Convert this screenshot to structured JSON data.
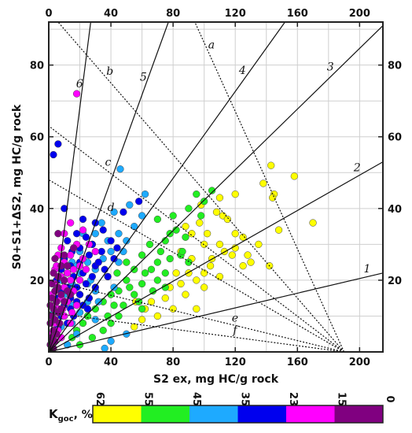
{
  "chart_data": {
    "type": "scatter",
    "xlabel": "S2 ex, mg HC/g rock",
    "ylabel": "S0+S1+ΔS2, mg HC/g rock",
    "xlim": [
      0,
      215
    ],
    "ylim": [
      0,
      92
    ],
    "x_ticks": [
      0,
      40,
      80,
      120,
      160,
      200
    ],
    "y_ticks": [
      20,
      40,
      60,
      80
    ],
    "grid": true,
    "axes_on_all_sides": true,
    "solid_lines": [
      {
        "label": "1",
        "from": [
          0,
          0
        ],
        "to": [
          215,
          22
        ]
      },
      {
        "label": "2",
        "from": [
          0,
          0
        ],
        "to": [
          215,
          53
        ]
      },
      {
        "label": "3",
        "from": [
          0,
          0
        ],
        "to": [
          215,
          91
        ]
      },
      {
        "label": "4",
        "from": [
          0,
          0
        ],
        "to": [
          152,
          92
        ]
      },
      {
        "label": "5",
        "from": [
          0,
          0
        ],
        "to": [
          77,
          92
        ]
      },
      {
        "label": "6",
        "from": [
          0,
          0
        ],
        "to": [
          27,
          92
        ]
      }
    ],
    "dotted_lines": [
      {
        "label": "a",
        "from": [
          190,
          0
        ],
        "to": [
          94,
          92
        ]
      },
      {
        "label": "b",
        "from": [
          190,
          0
        ],
        "to": [
          0,
          95
        ]
      },
      {
        "label": "c",
        "from": [
          190,
          0
        ],
        "to": [
          0,
          63
        ]
      },
      {
        "label": "d",
        "from": [
          190,
          0
        ],
        "to": [
          0,
          48
        ]
      },
      {
        "label": "e",
        "from": [
          190,
          0
        ],
        "to": [
          0,
          20
        ]
      },
      {
        "label": "f",
        "from": [
          190,
          0
        ],
        "to": [
          0,
          11
        ]
      }
    ],
    "colorbar": {
      "label_main": "K",
      "label_sub": "goc",
      "label_unit": ", %",
      "ticks": [
        "62",
        "55",
        "45",
        "35",
        "23",
        "15",
        "0"
      ],
      "segments": [
        {
          "range": "62–55",
          "color": "#ffff00"
        },
        {
          "range": "55–45",
          "color": "#22ee22"
        },
        {
          "range": "45–35",
          "color": "#1eaaff"
        },
        {
          "range": "35–23",
          "color": "#0000ee"
        },
        {
          "range": "23–15",
          "color": "#ff00ff"
        },
        {
          "range": "15–0",
          "color": "#800080"
        }
      ]
    },
    "series": [
      {
        "color": "#ffff00",
        "points": [
          [
            143,
            52
          ],
          [
            158,
            49
          ],
          [
            138,
            47
          ],
          [
            145,
            44
          ],
          [
            144,
            43
          ],
          [
            120,
            44
          ],
          [
            110,
            43
          ],
          [
            98,
            41
          ],
          [
            108,
            39
          ],
          [
            112,
            38
          ],
          [
            97,
            36
          ],
          [
            115,
            37
          ],
          [
            170,
            36
          ],
          [
            148,
            34
          ],
          [
            92,
            33
          ],
          [
            88,
            35
          ],
          [
            102,
            33
          ],
          [
            120,
            33
          ],
          [
            125,
            32
          ],
          [
            100,
            30
          ],
          [
            110,
            30
          ],
          [
            120,
            29
          ],
          [
            128,
            27
          ],
          [
            130,
            25
          ],
          [
            125,
            24
          ],
          [
            104,
            24
          ],
          [
            92,
            26
          ],
          [
            85,
            28
          ],
          [
            100,
            22
          ],
          [
            110,
            21
          ],
          [
            142,
            24
          ],
          [
            95,
            20
          ],
          [
            85,
            19
          ],
          [
            78,
            18
          ],
          [
            88,
            16
          ],
          [
            75,
            15
          ],
          [
            95,
            12
          ],
          [
            80,
            12
          ],
          [
            70,
            10
          ],
          [
            62,
            12
          ],
          [
            56,
            14
          ],
          [
            60,
            9
          ],
          [
            55,
            7
          ],
          [
            66,
            14
          ],
          [
            105,
            26
          ],
          [
            118,
            27
          ],
          [
            135,
            30
          ],
          [
            100,
            18
          ],
          [
            90,
            22
          ],
          [
            82,
            22
          ],
          [
            113,
            28
          ]
        ]
      },
      {
        "color": "#22ee22",
        "points": [
          [
            105,
            45
          ],
          [
            95,
            44
          ],
          [
            100,
            42
          ],
          [
            90,
            40
          ],
          [
            80,
            38
          ],
          [
            82,
            34
          ],
          [
            70,
            37
          ],
          [
            88,
            32
          ],
          [
            75,
            31
          ],
          [
            65,
            30
          ],
          [
            85,
            27
          ],
          [
            78,
            26
          ],
          [
            70,
            25
          ],
          [
            60,
            27
          ],
          [
            75,
            22
          ],
          [
            66,
            23
          ],
          [
            55,
            23
          ],
          [
            50,
            25
          ],
          [
            70,
            20
          ],
          [
            60,
            19
          ],
          [
            50,
            20
          ],
          [
            45,
            17
          ],
          [
            55,
            16
          ],
          [
            40,
            16
          ],
          [
            35,
            14
          ],
          [
            48,
            13
          ],
          [
            60,
            12
          ],
          [
            45,
            10
          ],
          [
            38,
            10
          ],
          [
            30,
            12
          ],
          [
            25,
            10
          ],
          [
            22,
            8
          ],
          [
            35,
            6
          ],
          [
            28,
            4
          ],
          [
            18,
            6
          ],
          [
            15,
            4
          ],
          [
            20,
            2
          ],
          [
            40,
            8
          ],
          [
            58,
            14
          ],
          [
            75,
            18
          ],
          [
            90,
            25
          ],
          [
            98,
            38
          ],
          [
            86,
            28
          ],
          [
            62,
            22
          ],
          [
            72,
            28
          ],
          [
            52,
            18
          ],
          [
            44,
            22
          ],
          [
            42,
            13
          ],
          [
            78,
            33
          ],
          [
            67,
            17
          ]
        ]
      },
      {
        "color": "#1eaaff",
        "points": [
          [
            46,
            51
          ],
          [
            62,
            44
          ],
          [
            52,
            41
          ],
          [
            42,
            39
          ],
          [
            60,
            38
          ],
          [
            34,
            36
          ],
          [
            55,
            35
          ],
          [
            45,
            33
          ],
          [
            38,
            31
          ],
          [
            30,
            33
          ],
          [
            50,
            31
          ],
          [
            28,
            30
          ],
          [
            40,
            28
          ],
          [
            20,
            28
          ],
          [
            35,
            26
          ],
          [
            25,
            25
          ],
          [
            45,
            25
          ],
          [
            15,
            25
          ],
          [
            30,
            23
          ],
          [
            20,
            22
          ],
          [
            12,
            22
          ],
          [
            38,
            21
          ],
          [
            25,
            19
          ],
          [
            15,
            19
          ],
          [
            8,
            20
          ],
          [
            30,
            17
          ],
          [
            20,
            16
          ],
          [
            10,
            16
          ],
          [
            5,
            18
          ],
          [
            25,
            14
          ],
          [
            15,
            13
          ],
          [
            5,
            14
          ],
          [
            20,
            11
          ],
          [
            10,
            10
          ],
          [
            3,
            11
          ],
          [
            15,
            8
          ],
          [
            8,
            7
          ],
          [
            30,
            9
          ],
          [
            18,
            5
          ],
          [
            5,
            5
          ],
          [
            40,
            3
          ],
          [
            50,
            5
          ],
          [
            36,
            1
          ],
          [
            12,
            2
          ],
          [
            42,
            18
          ],
          [
            48,
            28
          ],
          [
            22,
            33
          ],
          [
            32,
            14
          ],
          [
            18,
            24
          ],
          [
            27,
            20
          ]
        ]
      },
      {
        "color": "#0000ee",
        "points": [
          [
            6,
            58
          ],
          [
            3,
            55
          ],
          [
            58,
            42
          ],
          [
            10,
            40
          ],
          [
            48,
            39
          ],
          [
            22,
            37
          ],
          [
            30,
            36
          ],
          [
            35,
            34
          ],
          [
            18,
            33
          ],
          [
            24,
            32
          ],
          [
            40,
            31
          ],
          [
            12,
            31
          ],
          [
            28,
            30
          ],
          [
            20,
            29
          ],
          [
            34,
            28
          ],
          [
            15,
            28
          ],
          [
            26,
            27
          ],
          [
            42,
            26
          ],
          [
            10,
            26
          ],
          [
            20,
            25
          ],
          [
            30,
            24
          ],
          [
            14,
            24
          ],
          [
            36,
            23
          ],
          [
            8,
            23
          ],
          [
            22,
            22
          ],
          [
            28,
            21
          ],
          [
            16,
            21
          ],
          [
            10,
            20
          ],
          [
            5,
            20
          ],
          [
            24,
            19
          ],
          [
            18,
            18
          ],
          [
            12,
            18
          ],
          [
            30,
            18
          ],
          [
            8,
            17
          ],
          [
            20,
            16
          ],
          [
            14,
            15
          ],
          [
            26,
            15
          ],
          [
            6,
            15
          ],
          [
            18,
            14
          ],
          [
            10,
            13
          ],
          [
            22,
            13
          ],
          [
            4,
            12
          ],
          [
            14,
            12
          ],
          [
            8,
            10
          ],
          [
            16,
            10
          ],
          [
            3,
            9
          ],
          [
            12,
            8
          ],
          [
            6,
            7
          ],
          [
            32,
            25
          ],
          [
            44,
            29
          ],
          [
            38,
            21
          ],
          [
            25,
            12
          ]
        ]
      },
      {
        "color": "#ff00ff",
        "points": [
          [
            18,
            72
          ],
          [
            14,
            36
          ],
          [
            22,
            34
          ],
          [
            10,
            33
          ],
          [
            26,
            30
          ],
          [
            18,
            30
          ],
          [
            8,
            29
          ],
          [
            30,
            28
          ],
          [
            14,
            27
          ],
          [
            6,
            27
          ],
          [
            22,
            26
          ],
          [
            10,
            25
          ],
          [
            16,
            23
          ],
          [
            4,
            23
          ],
          [
            24,
            23
          ],
          [
            8,
            21
          ],
          [
            14,
            20
          ],
          [
            20,
            20
          ],
          [
            4,
            19
          ],
          [
            10,
            18
          ],
          [
            16,
            17
          ],
          [
            2,
            16
          ],
          [
            8,
            15
          ],
          [
            12,
            14
          ],
          [
            4,
            13
          ],
          [
            18,
            13
          ],
          [
            6,
            12
          ],
          [
            2,
            10
          ],
          [
            10,
            10
          ],
          [
            4,
            8
          ],
          [
            14,
            8
          ],
          [
            6,
            6
          ],
          [
            2,
            5
          ],
          [
            8,
            4
          ],
          [
            3,
            3
          ],
          [
            12,
            22
          ],
          [
            20,
            24
          ],
          [
            5,
            24
          ],
          [
            15,
            11
          ],
          [
            9,
            12
          ]
        ]
      },
      {
        "color": "#800080",
        "points": [
          [
            6,
            33
          ],
          [
            16,
            29
          ],
          [
            10,
            27
          ],
          [
            4,
            26
          ],
          [
            8,
            24
          ],
          [
            12,
            24
          ],
          [
            3,
            22
          ],
          [
            6,
            21
          ],
          [
            10,
            20
          ],
          [
            2,
            19
          ],
          [
            6,
            18
          ],
          [
            4,
            17
          ],
          [
            8,
            16
          ],
          [
            2,
            15
          ],
          [
            5,
            14
          ],
          [
            10,
            14
          ],
          [
            3,
            12
          ],
          [
            6,
            11
          ],
          [
            2,
            10
          ],
          [
            4,
            9
          ],
          [
            7,
            8
          ],
          [
            1,
            8
          ],
          [
            3,
            6
          ],
          [
            5,
            5
          ],
          [
            2,
            4
          ],
          [
            4,
            3
          ],
          [
            1,
            2
          ],
          [
            3,
            1
          ],
          [
            12,
            17
          ],
          [
            8,
            12
          ],
          [
            14,
            16
          ],
          [
            1,
            13
          ]
        ]
      }
    ]
  }
}
